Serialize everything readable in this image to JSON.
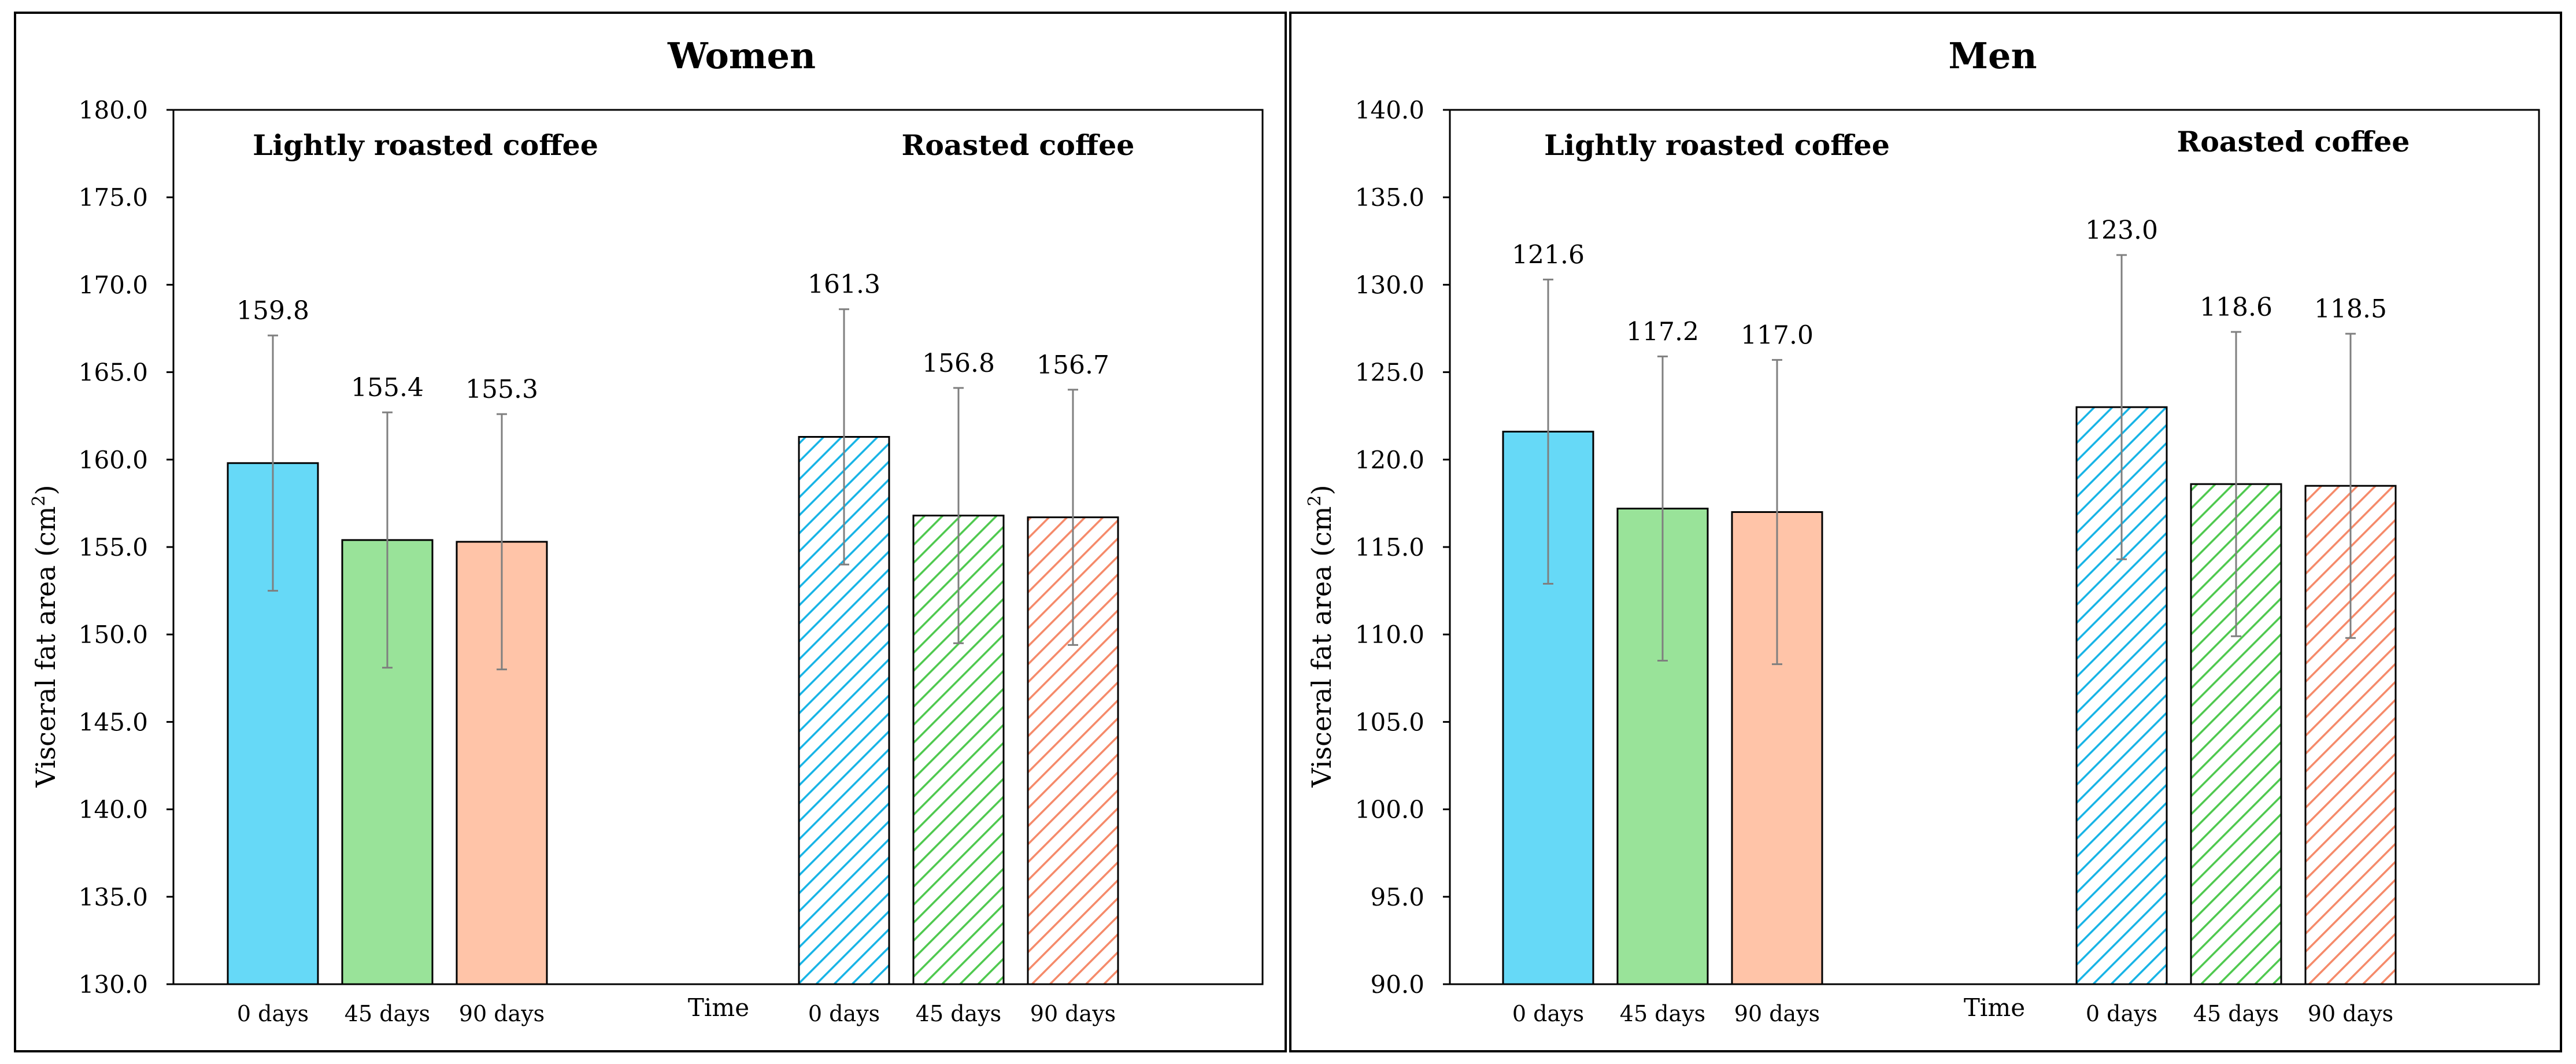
{
  "chart_data": [
    {
      "type": "bar",
      "title": "Women",
      "xlabel": "Time",
      "ylabel": "Visceral fat area (cm",
      "ylabel_sup": "2",
      "ylabel_end": ")",
      "ylim": [
        130,
        180
      ],
      "yticks": [
        "130.0",
        "135.0",
        "140.0",
        "145.0",
        "150.0",
        "155.0",
        "160.0",
        "165.0",
        "170.0",
        "175.0",
        "180.0"
      ],
      "groups": [
        {
          "label": "Lightly roasted coffee",
          "pattern": "solid",
          "categories": [
            "0 days",
            "45 days",
            "90 days"
          ],
          "values": [
            159.8,
            155.4,
            155.3
          ],
          "value_labels": [
            "159.8",
            "155.4",
            "155.3"
          ],
          "errors": [
            7.3,
            7.3,
            7.3
          ]
        },
        {
          "label": "Roasted coffee",
          "pattern": "hatched",
          "categories": [
            "0 days",
            "45 days",
            "90 days"
          ],
          "values": [
            161.3,
            156.8,
            156.7
          ],
          "value_labels": [
            "161.3",
            "156.8",
            "156.7"
          ],
          "errors": [
            7.3,
            7.3,
            7.3
          ]
        }
      ]
    },
    {
      "type": "bar",
      "title": "Men",
      "xlabel": "Time",
      "ylabel": "Visceral fat area (cm",
      "ylabel_sup": "2",
      "ylabel_end": ")",
      "ylim": [
        90,
        140
      ],
      "yticks": [
        "90.0",
        "95.0",
        "100.0",
        "105.0",
        "110.0",
        "115.0",
        "120.0",
        "125.0",
        "130.0",
        "135.0",
        "140.0"
      ],
      "groups": [
        {
          "label": "Lightly roasted coffee",
          "pattern": "solid",
          "categories": [
            "0 days",
            "45 days",
            "90 days"
          ],
          "values": [
            121.6,
            117.2,
            117.0
          ],
          "value_labels": [
            "121.6",
            "117.2",
            "117.0"
          ],
          "errors": [
            8.7,
            8.7,
            8.7
          ]
        },
        {
          "label": "Roasted coffee",
          "pattern": "hatched",
          "categories": [
            "0 days",
            "45 days",
            "90 days"
          ],
          "values": [
            123.0,
            118.6,
            118.5
          ],
          "value_labels": [
            "123.0",
            "118.6",
            "118.5"
          ],
          "errors": [
            8.7,
            8.7,
            8.7
          ]
        }
      ]
    }
  ],
  "colors": {
    "blue": "#66d9f7",
    "green": "#99e399",
    "orange": "#ffc4a8",
    "blue_hatch": "#18b4e6",
    "green_hatch": "#4fc94f",
    "orange_hatch": "#f58a6a",
    "axis": "#000000",
    "error_bar": "#7f7f7f"
  }
}
